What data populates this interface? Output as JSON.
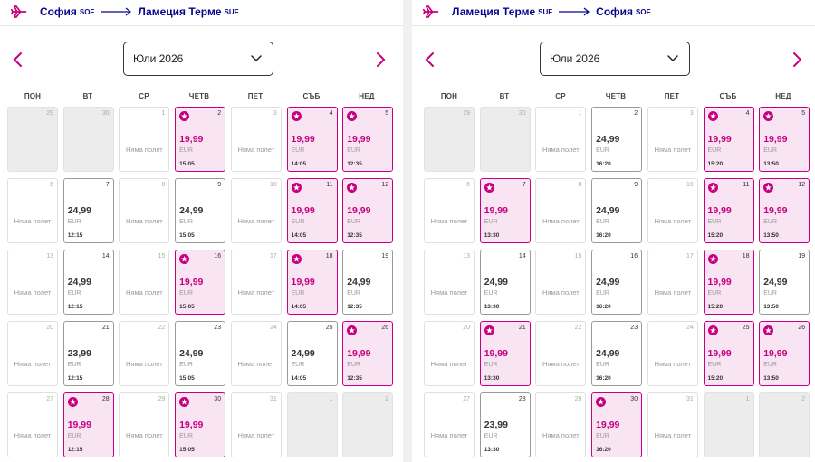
{
  "colors": {
    "brand": "#c6007e",
    "route_text": "#06038d",
    "promo_bg": "#f9e4f3"
  },
  "no_flight_label": "Няма полет",
  "currency": "EUR",
  "weekdays": [
    "ПОН",
    "ВТ",
    "СР",
    "ЧЕТВ",
    "ПЕТ",
    "СЪБ",
    "НЕД"
  ],
  "panels": [
    {
      "route": {
        "from": "София",
        "from_code": "SOF",
        "to": "Ламеция Терме",
        "to_code": "SUF"
      },
      "month": "Юли 2026",
      "days": [
        {
          "d": "29",
          "t": "gray"
        },
        {
          "d": "30",
          "t": "gray"
        },
        {
          "d": "1",
          "t": "none"
        },
        {
          "d": "2",
          "t": "promo",
          "p": "19,99",
          "h": "15:05"
        },
        {
          "d": "3",
          "t": "none"
        },
        {
          "d": "4",
          "t": "promo",
          "p": "19,99",
          "h": "14:05"
        },
        {
          "d": "5",
          "t": "promo",
          "p": "19,99",
          "h": "12:35"
        },
        {
          "d": "6",
          "t": "none"
        },
        {
          "d": "7",
          "t": "fare",
          "p": "24,99",
          "h": "12:15"
        },
        {
          "d": "8",
          "t": "none"
        },
        {
          "d": "9",
          "t": "fare",
          "p": "24,99",
          "h": "15:05"
        },
        {
          "d": "10",
          "t": "none"
        },
        {
          "d": "11",
          "t": "promo",
          "p": "19,99",
          "h": "14:05"
        },
        {
          "d": "12",
          "t": "promo",
          "p": "19,99",
          "h": "12:35"
        },
        {
          "d": "13",
          "t": "none"
        },
        {
          "d": "14",
          "t": "fare",
          "p": "24,99",
          "h": "12:15"
        },
        {
          "d": "15",
          "t": "none"
        },
        {
          "d": "16",
          "t": "promo",
          "p": "19,99",
          "h": "15:05"
        },
        {
          "d": "17",
          "t": "none"
        },
        {
          "d": "18",
          "t": "promo",
          "p": "19,99",
          "h": "14:05"
        },
        {
          "d": "19",
          "t": "fare",
          "p": "24,99",
          "h": "12:35"
        },
        {
          "d": "20",
          "t": "none"
        },
        {
          "d": "21",
          "t": "fare",
          "p": "23,99",
          "h": "12:15"
        },
        {
          "d": "22",
          "t": "none"
        },
        {
          "d": "23",
          "t": "fare",
          "p": "24,99",
          "h": "15:05"
        },
        {
          "d": "24",
          "t": "none"
        },
        {
          "d": "25",
          "t": "fare",
          "p": "24,99",
          "h": "14:05"
        },
        {
          "d": "26",
          "t": "promo",
          "p": "19,99",
          "h": "12:35"
        },
        {
          "d": "27",
          "t": "none"
        },
        {
          "d": "28",
          "t": "promo",
          "p": "19,99",
          "h": "12:15"
        },
        {
          "d": "29",
          "t": "none"
        },
        {
          "d": "30",
          "t": "promo",
          "p": "19,99",
          "h": "15:05"
        },
        {
          "d": "31",
          "t": "none"
        },
        {
          "d": "1",
          "t": "gray"
        },
        {
          "d": "2",
          "t": "gray"
        }
      ]
    },
    {
      "route": {
        "from": "Ламеция Терме",
        "from_code": "SUF",
        "to": "София",
        "to_code": "SOF"
      },
      "month": "Юли 2026",
      "days": [
        {
          "d": "29",
          "t": "gray"
        },
        {
          "d": "30",
          "t": "gray"
        },
        {
          "d": "1",
          "t": "none"
        },
        {
          "d": "2",
          "t": "fare",
          "p": "24,99",
          "h": "16:20"
        },
        {
          "d": "3",
          "t": "none"
        },
        {
          "d": "4",
          "t": "promo",
          "p": "19,99",
          "h": "15:20"
        },
        {
          "d": "5",
          "t": "promo",
          "p": "19,99",
          "h": "13:50"
        },
        {
          "d": "6",
          "t": "none"
        },
        {
          "d": "7",
          "t": "promo",
          "p": "19,99",
          "h": "13:30"
        },
        {
          "d": "8",
          "t": "none"
        },
        {
          "d": "9",
          "t": "fare",
          "p": "24,99",
          "h": "16:20"
        },
        {
          "d": "10",
          "t": "none"
        },
        {
          "d": "11",
          "t": "promo",
          "p": "19,99",
          "h": "15:20"
        },
        {
          "d": "12",
          "t": "promo",
          "p": "19,99",
          "h": "13:50"
        },
        {
          "d": "13",
          "t": "none"
        },
        {
          "d": "14",
          "t": "fare",
          "p": "24,99",
          "h": "13:30"
        },
        {
          "d": "15",
          "t": "none"
        },
        {
          "d": "16",
          "t": "fare",
          "p": "24,99",
          "h": "16:20"
        },
        {
          "d": "17",
          "t": "none"
        },
        {
          "d": "18",
          "t": "promo",
          "p": "19,99",
          "h": "15:20"
        },
        {
          "d": "19",
          "t": "fare",
          "p": "24,99",
          "h": "13:50"
        },
        {
          "d": "20",
          "t": "none"
        },
        {
          "d": "21",
          "t": "promo",
          "p": "19,99",
          "h": "13:30"
        },
        {
          "d": "22",
          "t": "none"
        },
        {
          "d": "23",
          "t": "fare",
          "p": "24,99",
          "h": "16:20"
        },
        {
          "d": "24",
          "t": "none"
        },
        {
          "d": "25",
          "t": "promo",
          "p": "19,99",
          "h": "15:20"
        },
        {
          "d": "26",
          "t": "promo",
          "p": "19,99",
          "h": "13:50"
        },
        {
          "d": "27",
          "t": "none"
        },
        {
          "d": "28",
          "t": "fare",
          "p": "23,99",
          "h": "13:30"
        },
        {
          "d": "29",
          "t": "none"
        },
        {
          "d": "30",
          "t": "promo",
          "p": "19,99",
          "h": "16:20"
        },
        {
          "d": "31",
          "t": "none"
        },
        {
          "d": "1",
          "t": "gray"
        },
        {
          "d": "2",
          "t": "gray"
        }
      ]
    }
  ]
}
